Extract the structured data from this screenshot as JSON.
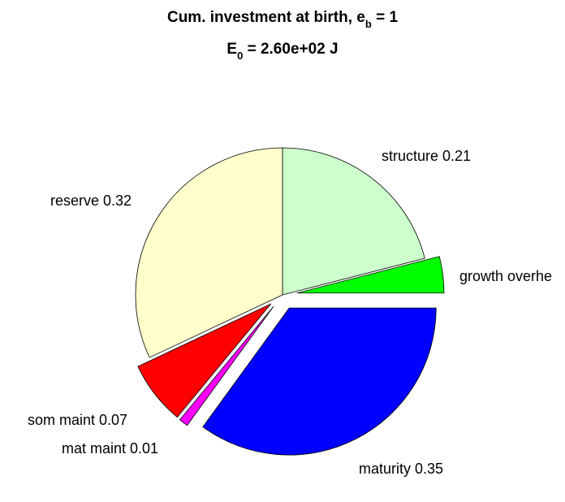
{
  "chart_data": {
    "type": "pie",
    "title_line1": {
      "text": "Cum. investment at birth, e",
      "subscript": "b",
      "suffix": " = 1"
    },
    "title_line2": {
      "text": "E",
      "subscript": "0",
      "suffix": " = 2.60e+02 J"
    },
    "slices": [
      {
        "name": "structure",
        "value": 0.21,
        "label": "structure 0.21",
        "color": "#ccffcc",
        "exploded": false
      },
      {
        "name": "growth overhead",
        "value": 0.04,
        "label": "growth overhe",
        "color": "#00ff00",
        "exploded": true
      },
      {
        "name": "maturity",
        "value": 0.35,
        "label": "maturity 0.35",
        "color": "#0000ff",
        "exploded": true
      },
      {
        "name": "mat maint",
        "value": 0.01,
        "label": "mat maint 0.01",
        "color": "#ff00ff",
        "exploded": true
      },
      {
        "name": "som maint",
        "value": 0.07,
        "label": "som maint 0.07",
        "color": "#ff0000",
        "exploded": true
      },
      {
        "name": "reserve",
        "value": 0.32,
        "label": "reserve 0.32",
        "color": "#ffffcc",
        "exploded": false
      }
    ]
  }
}
